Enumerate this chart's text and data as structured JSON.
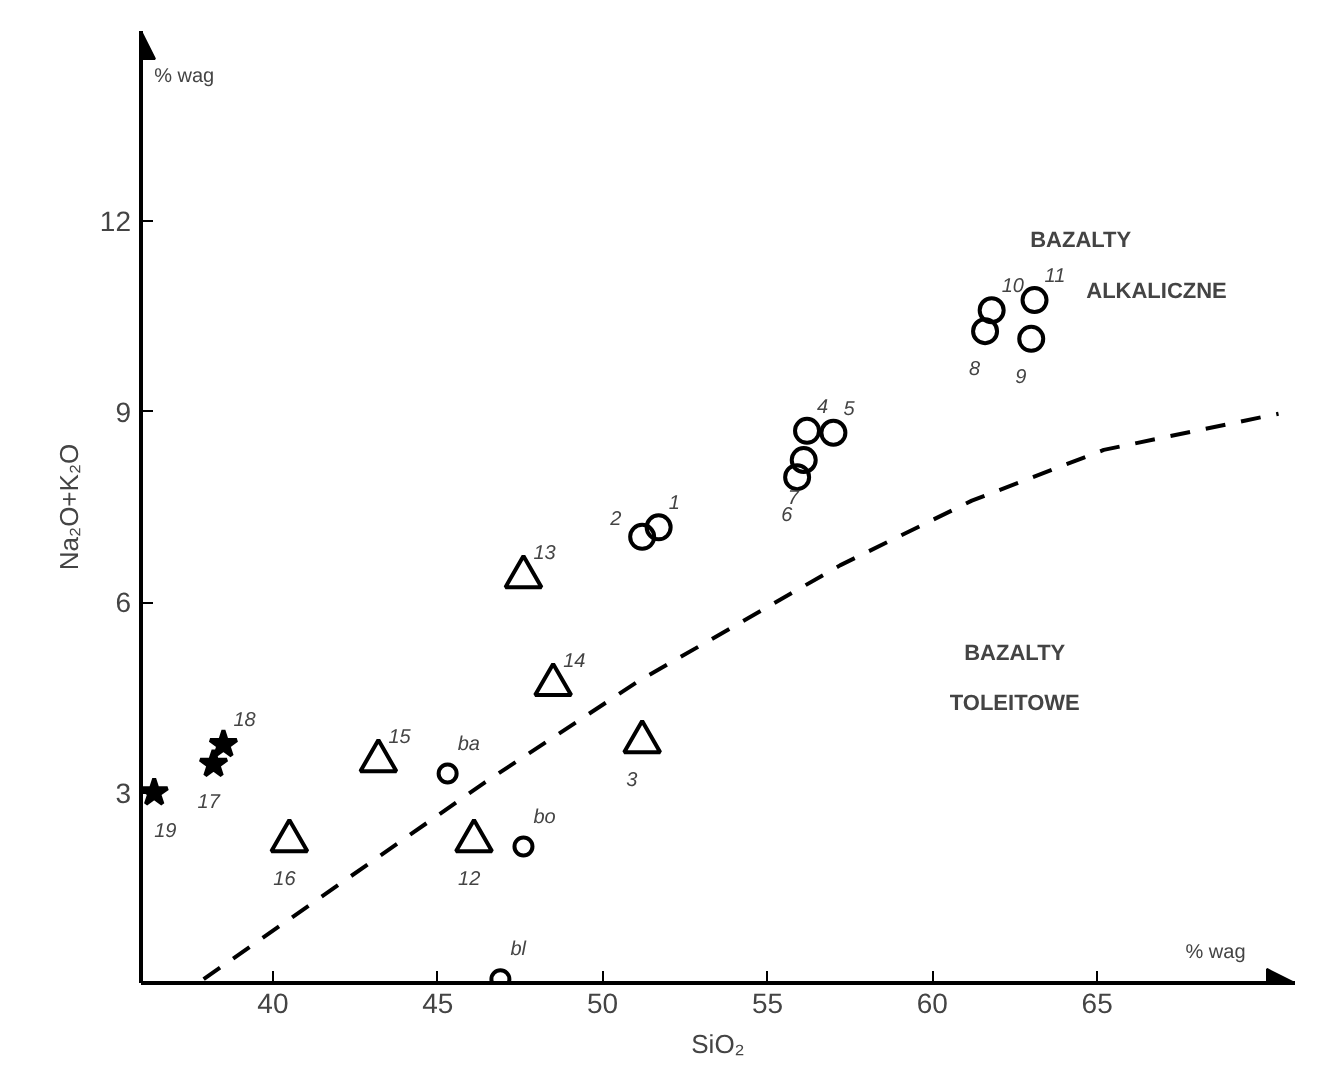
{
  "chart_data": {
    "type": "scatter",
    "xlabel": "SiO₂",
    "ylabel": "Na₂O+K₂O",
    "xlim": [
      36,
      71
    ],
    "ylim": [
      0,
      15
    ],
    "xticks": [
      40,
      45,
      50,
      55,
      60,
      65
    ],
    "yticks": [
      3,
      6,
      9,
      12
    ],
    "grid": false,
    "series": [
      {
        "color": "#000000",
        "marker": "circle",
        "x": [
          51.7,
          51.2,
          56.2,
          57.0,
          56.1,
          55.9,
          61.8,
          61.6,
          63.1,
          63.0
        ],
        "values": [
          7.18,
          7.03,
          8.7,
          8.67,
          8.24,
          7.97,
          10.6,
          10.27,
          10.76,
          10.15
        ]
      },
      {
        "color": "#000000",
        "marker": "triangle",
        "x": [
          47.6,
          48.5,
          51.2,
          43.2,
          40.5,
          46.1
        ],
        "values": [
          6.4,
          4.7,
          3.8,
          3.5,
          2.24,
          2.24
        ]
      },
      {
        "color": "#000000",
        "marker": "star",
        "x": [
          38.5,
          38.2,
          36.4
        ],
        "values": [
          3.76,
          3.45,
          3.0
        ]
      },
      {
        "color": "#000000",
        "marker": "circle",
        "x": [
          45.3,
          47.6,
          46.9
        ],
        "values": [
          3.3,
          2.15,
          0.06
        ]
      },
      {
        "color": "#000000",
        "type": "line",
        "line_style": "dashed",
        "marker": "none",
        "x": [
          37.9,
          46.4,
          51.1,
          57.2,
          61.2,
          65.2,
          70.5
        ],
        "values": [
          0.06,
          3.15,
          4.76,
          6.58,
          7.6,
          8.4,
          8.97
        ]
      }
    ],
    "annotations": [
      {
        "text": "1",
        "x": 51.7,
        "y": 7.18
      },
      {
        "text": "2",
        "x": 51.2,
        "y": 7.03
      },
      {
        "text": "4",
        "x": 56.2,
        "y": 8.7
      },
      {
        "text": "5",
        "x": 57.0,
        "y": 8.67
      },
      {
        "text": "7",
        "x": 56.1,
        "y": 8.24
      },
      {
        "text": "6",
        "x": 55.9,
        "y": 7.97
      },
      {
        "text": "10",
        "x": 61.8,
        "y": 10.6
      },
      {
        "text": "8",
        "x": 61.6,
        "y": 10.27
      },
      {
        "text": "11",
        "x": 63.1,
        "y": 10.76
      },
      {
        "text": "9",
        "x": 63.0,
        "y": 10.15
      },
      {
        "text": "13",
        "x": 47.6,
        "y": 6.4
      },
      {
        "text": "14",
        "x": 48.5,
        "y": 4.7
      },
      {
        "text": "3",
        "x": 51.2,
        "y": 3.8
      },
      {
        "text": "15",
        "x": 43.2,
        "y": 3.5
      },
      {
        "text": "16",
        "x": 40.5,
        "y": 2.24
      },
      {
        "text": "12",
        "x": 46.1,
        "y": 2.24
      },
      {
        "text": "18",
        "x": 38.5,
        "y": 3.76
      },
      {
        "text": "17",
        "x": 38.2,
        "y": 3.45
      },
      {
        "text": "19",
        "x": 36.4,
        "y": 3.0
      },
      {
        "text": "ba",
        "x": 45.3,
        "y": 3.3
      },
      {
        "text": "bo",
        "x": 47.6,
        "y": 2.15
      },
      {
        "text": "bl",
        "x": 46.9,
        "y": 0.06
      },
      "BAZALTY",
      "ALKALICZNE",
      "BAZALTY",
      "TOLEITOWE",
      "% wag",
      "% wag"
    ]
  }
}
